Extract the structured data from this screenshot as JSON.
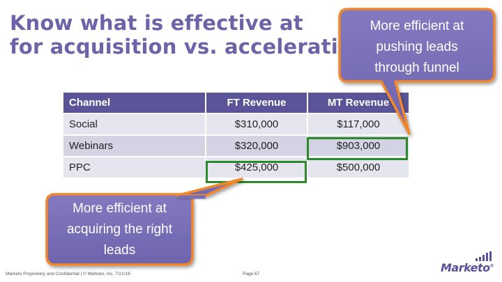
{
  "title": {
    "line1": "Know what is effective at",
    "line2": "for acquisition vs. acceleration"
  },
  "table": {
    "headers": [
      "Channel",
      "FT Revenue",
      "MT Revenue"
    ],
    "rows": [
      [
        "Social",
        "$310,000",
        "$117,000"
      ],
      [
        "Webinars",
        "$320,000",
        "$903,000"
      ],
      [
        "PPC",
        "$425,000",
        "$500,000"
      ]
    ]
  },
  "callouts": {
    "top": {
      "line1": "More efficient at",
      "line2": "pushing leads",
      "line3": "through funnel"
    },
    "bottom": {
      "line1": "More efficient at",
      "line2": "acquiring the right",
      "line3": "leads"
    }
  },
  "footer": {
    "text": "Marketo Proprietary and Confidential  |  © Marketo, Inc.  7/21/16",
    "page": "Page 67"
  },
  "logo": {
    "text": "Marketo",
    "mark": "®"
  },
  "colors": {
    "title": "#6b64a8",
    "table_header": "#5b5499",
    "row_light": "#e5e5ef",
    "row_dark": "#d4d3e4",
    "highlight": "#2a8a2a",
    "callout_fill": "#7a70b8",
    "callout_border": "#f0872a"
  }
}
